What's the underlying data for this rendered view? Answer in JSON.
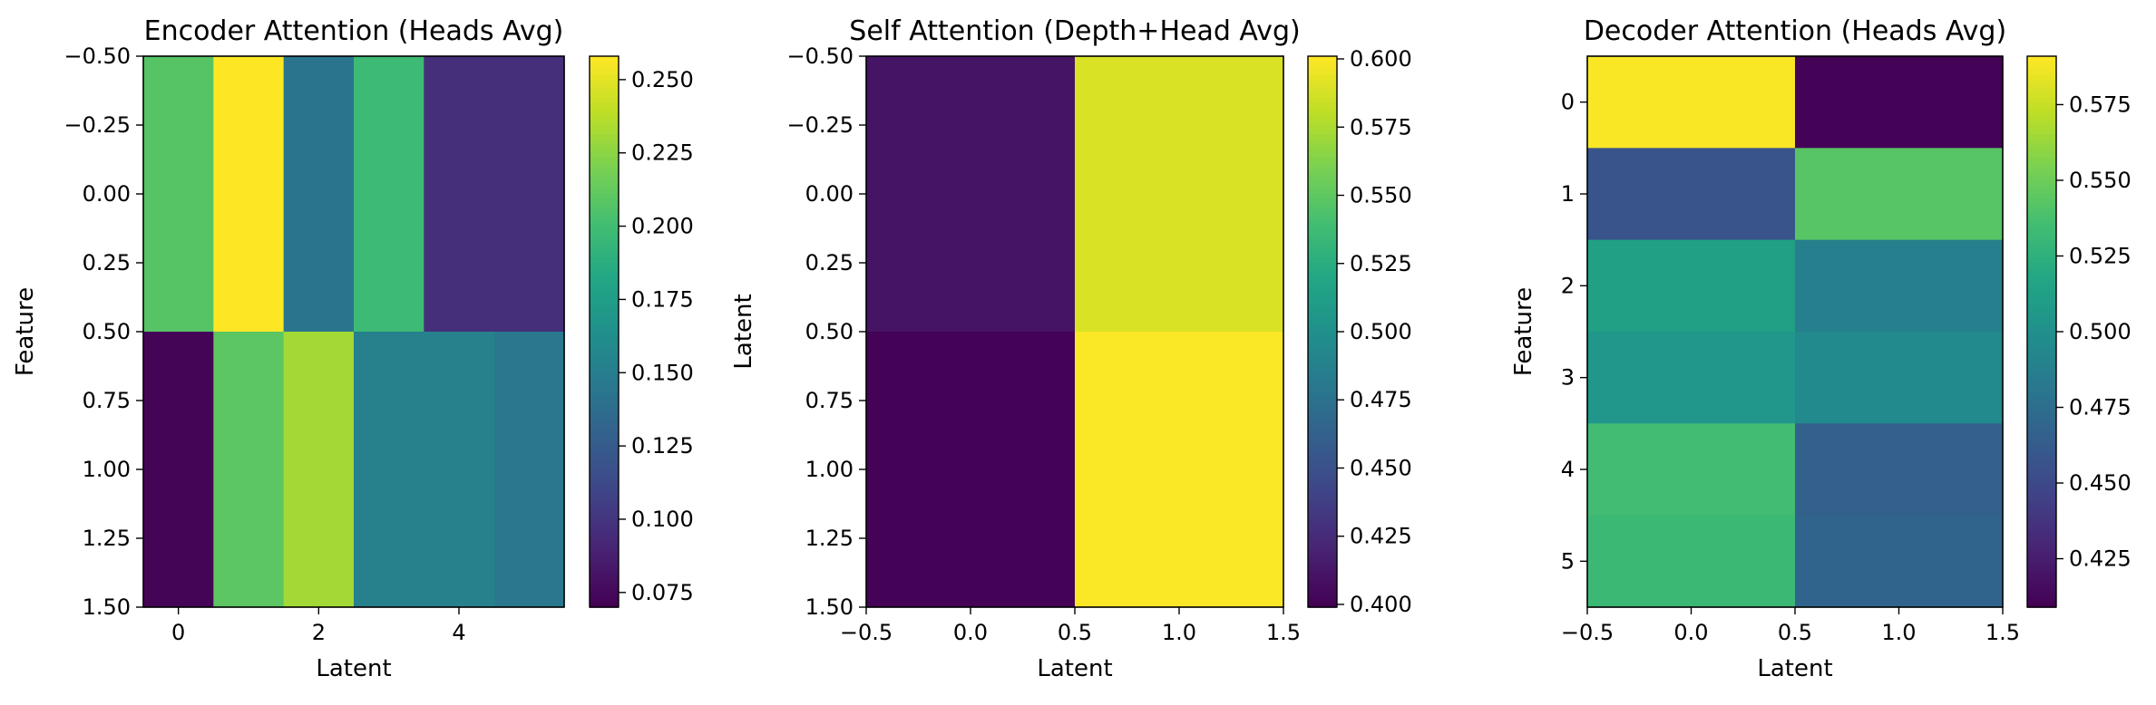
{
  "chart_data": [
    {
      "type": "heatmap",
      "title": "Encoder Attention (Heads Avg)",
      "xlabel": "Latent",
      "ylabel": "Feature",
      "xlim": [
        -0.5,
        5.5
      ],
      "ylim": [
        1.5,
        -0.5
      ],
      "x_ticks": [
        0,
        2,
        4
      ],
      "x_tick_labels": [
        "0",
        "2",
        "4"
      ],
      "y_ticks": [
        -0.5,
        -0.25,
        0.0,
        0.25,
        0.5,
        0.75,
        1.0,
        1.25,
        1.5
      ],
      "y_tick_labels": [
        "−0.50",
        "−0.25",
        "0.00",
        "0.25",
        "0.50",
        "0.75",
        "1.00",
        "1.25",
        "1.50"
      ],
      "values": [
        [
          0.208,
          0.258,
          0.142,
          0.198,
          0.095,
          0.095
        ],
        [
          0.072,
          0.21,
          0.232,
          0.152,
          0.152,
          0.145
        ]
      ],
      "colorbar": {
        "range": [
          0.07,
          0.258
        ],
        "ticks": [
          0.075,
          0.1,
          0.125,
          0.15,
          0.175,
          0.2,
          0.225,
          0.25
        ],
        "tick_labels": [
          "0.075",
          "0.100",
          "0.125",
          "0.150",
          "0.175",
          "0.200",
          "0.225",
          "0.250"
        ]
      }
    },
    {
      "type": "heatmap",
      "title": "Self Attention (Depth+Head Avg)",
      "xlabel": "Latent",
      "ylabel": "Latent",
      "xlim": [
        -0.5,
        1.5
      ],
      "ylim": [
        1.5,
        -0.5
      ],
      "x_ticks": [
        -0.5,
        0.0,
        0.5,
        1.0,
        1.5
      ],
      "x_tick_labels": [
        "−0.5",
        "0.0",
        "0.5",
        "1.0",
        "1.5"
      ],
      "y_ticks": [
        -0.5,
        -0.25,
        0.0,
        0.25,
        0.5,
        0.75,
        1.0,
        1.25,
        1.5
      ],
      "y_tick_labels": [
        "−0.50",
        "−0.25",
        "0.00",
        "0.25",
        "0.50",
        "0.75",
        "1.00",
        "1.25",
        "1.50"
      ],
      "values": [
        [
          0.41,
          0.59
        ],
        [
          0.4,
          0.6
        ]
      ],
      "colorbar": {
        "range": [
          0.399,
          0.601
        ],
        "ticks": [
          0.4,
          0.425,
          0.45,
          0.475,
          0.5,
          0.525,
          0.55,
          0.575,
          0.6
        ],
        "tick_labels": [
          "0.400",
          "0.425",
          "0.450",
          "0.475",
          "0.500",
          "0.525",
          "0.550",
          "0.575",
          "0.600"
        ]
      }
    },
    {
      "type": "heatmap",
      "title": "Decoder Attention (Heads Avg)",
      "xlabel": "Latent",
      "ylabel": "Feature",
      "xlim": [
        -0.5,
        1.5
      ],
      "ylim": [
        5.5,
        -0.5
      ],
      "x_ticks": [
        -0.5,
        0.0,
        0.5,
        1.0,
        1.5
      ],
      "x_tick_labels": [
        "−0.5",
        "0.0",
        "0.5",
        "1.0",
        "1.5"
      ],
      "y_ticks": [
        0,
        1,
        2,
        3,
        4,
        5
      ],
      "y_tick_labels": [
        "0",
        "1",
        "2",
        "3",
        "4",
        "5"
      ],
      "values": [
        [
          0.59,
          0.41
        ],
        [
          0.457,
          0.543
        ],
        [
          0.513,
          0.487
        ],
        [
          0.505,
          0.495
        ],
        [
          0.535,
          0.465
        ],
        [
          0.532,
          0.468
        ]
      ],
      "colorbar": {
        "range": [
          0.409,
          0.591
        ],
        "ticks": [
          0.425,
          0.45,
          0.475,
          0.5,
          0.525,
          0.55,
          0.575
        ],
        "tick_labels": [
          "0.425",
          "0.450",
          "0.475",
          "0.500",
          "0.525",
          "0.550",
          "0.575"
        ]
      }
    }
  ]
}
